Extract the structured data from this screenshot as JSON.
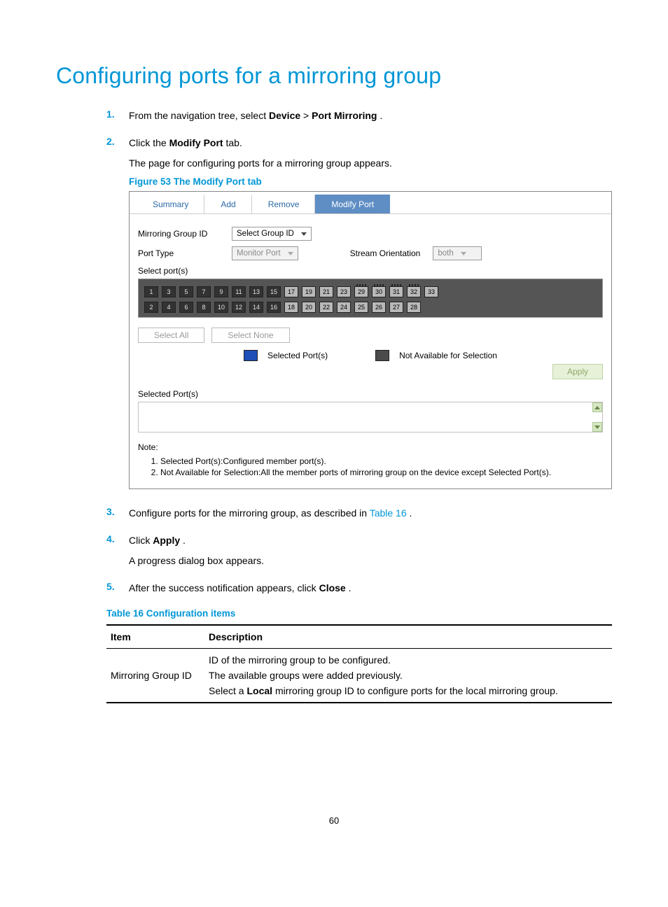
{
  "page_number": "60",
  "title": "Configuring ports for a mirroring group",
  "steps": [
    {
      "num": "1.",
      "text_before": "From the navigation tree, select ",
      "bold1": "Device",
      "mid": " > ",
      "bold2": "Port Mirroring",
      "after": "."
    },
    {
      "num": "2.",
      "text_before": "Click the ",
      "bold1": "Modify Port",
      "after": " tab."
    }
  ],
  "step2_followup": "The page for configuring ports for a mirroring group appears.",
  "figure_caption": "Figure 53 The Modify Port tab",
  "figure": {
    "tabs": {
      "summary": "Summary",
      "add": "Add",
      "remove": "Remove",
      "modify": "Modify Port"
    },
    "labels": {
      "group_id": "Mirroring Group ID",
      "port_type": "Port Type",
      "stream_orient": "Stream Orientation",
      "select_ports": "Select port(s)",
      "selected_ports_header": "Selected Port(s)",
      "note": "Note:"
    },
    "selects": {
      "group_id_value": "Select Group ID",
      "port_type_value": "Monitor Port",
      "stream_value": "both"
    },
    "ports": {
      "top_row": [
        "1",
        "3",
        "5",
        "7",
        "9",
        "11",
        "13",
        "15",
        "17",
        "19",
        "21",
        "23",
        "29",
        "30",
        "31",
        "32",
        "33"
      ],
      "bottom_row": [
        "2",
        "4",
        "6",
        "8",
        "10",
        "12",
        "14",
        "16",
        "18",
        "20",
        "22",
        "24",
        "25",
        "26",
        "27",
        "28"
      ],
      "dark_top": [
        "1",
        "3",
        "5",
        "7",
        "9",
        "11",
        "13",
        "15"
      ],
      "dark_bottom": [
        "2",
        "4",
        "6",
        "8",
        "10",
        "12",
        "14",
        "16"
      ],
      "zebra_top": [
        "29",
        "30",
        "31",
        "32"
      ],
      "port_cell_color_light": "#b9b9b9",
      "port_cell_color_dark": "#323232",
      "panel_bg": "#555555"
    },
    "buttons": {
      "select_all": "Select All",
      "select_none": "Select None",
      "apply": "Apply"
    },
    "legend": {
      "selected": "Selected Port(s)",
      "na": "Not Available for Selection",
      "selected_color": "#1e4eb7",
      "na_color": "#4a4a4a"
    },
    "notes": [
      "Selected Port(s):Configured member port(s).",
      "Not Available for Selection:All the member ports of mirroring group on the device except Selected Port(s)."
    ],
    "colors": {
      "tab_active_bg": "#5e8ec4",
      "tab_link": "#2a6aa6",
      "apply_bg": "#e7f1d8",
      "apply_border": "#c0d4a6"
    }
  },
  "steps_345": {
    "s3_num": "3.",
    "s3_text": "Configure ports for the mirroring group, as described in ",
    "s3_link": "Table 16",
    "s3_after": ".",
    "s4_num": "4.",
    "s4_text_a": "Click ",
    "s4_bold": "Apply",
    "s4_after": ".",
    "s4_follow": "A progress dialog box appears.",
    "s5_num": "5.",
    "s5_text_a": "After the success notification appears, click ",
    "s5_bold": "Close",
    "s5_after": "."
  },
  "table_caption": "Table 16 Configuration items",
  "table16": {
    "head_item": "Item",
    "head_desc": "Description",
    "row1_item": "Mirroring Group ID",
    "row1_desc": [
      "ID of the mirroring group to be configured.",
      "The available groups were added previously.",
      {
        "pre": "Select a ",
        "bold": "Local",
        "post": " mirroring group ID to configure ports for the local mirroring group."
      }
    ]
  },
  "colors": {
    "brand": "#0096d6"
  }
}
